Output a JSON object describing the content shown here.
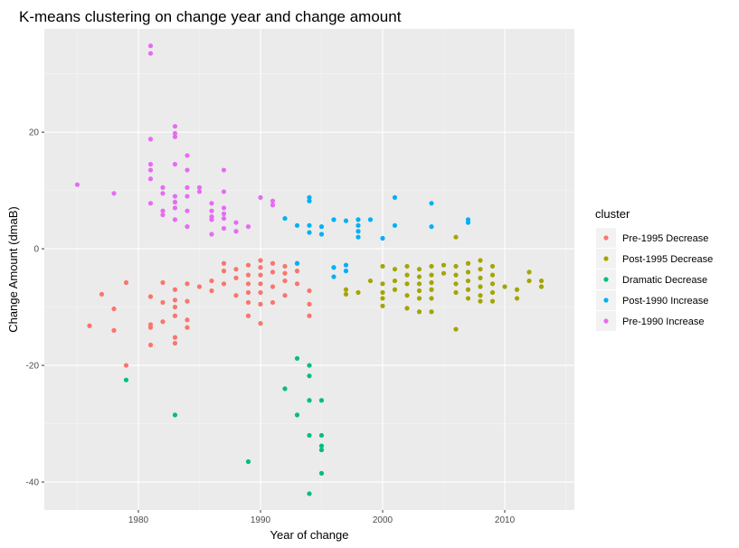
{
  "chart_data": {
    "type": "scatter",
    "title": "K-means clustering on change year and change amount",
    "xlabel": "Year of change",
    "ylabel": "Change Amount (dmaB)",
    "xlim": [
      1972.3,
      2015.7
    ],
    "ylim": [
      -44.8,
      37.7
    ],
    "x_ticks": [
      1980,
      1990,
      2000,
      2010
    ],
    "y_ticks": [
      -40,
      -20,
      0,
      20
    ],
    "grid": true,
    "legend": {
      "title": "cluster",
      "position": "right"
    },
    "series": [
      {
        "name": "Pre-1995 Decrease",
        "color": "#F8766D",
        "points": [
          [
            1976,
            -13.2
          ],
          [
            1977,
            -7.8
          ],
          [
            1978,
            -10.3
          ],
          [
            1978,
            -14.0
          ],
          [
            1979,
            -5.8
          ],
          [
            1979,
            -20.0
          ],
          [
            1981,
            -8.2
          ],
          [
            1981,
            -13.0
          ],
          [
            1981,
            -13.5
          ],
          [
            1981,
            -16.5
          ],
          [
            1982,
            -5.8
          ],
          [
            1982,
            -9.2
          ],
          [
            1982,
            -12.5
          ],
          [
            1983,
            -7.0
          ],
          [
            1983,
            -8.8
          ],
          [
            1983,
            -10.0
          ],
          [
            1983,
            -11.5
          ],
          [
            1983,
            -15.2
          ],
          [
            1983,
            -16.2
          ],
          [
            1984,
            -6.0
          ],
          [
            1984,
            -9.0
          ],
          [
            1984,
            -12.2
          ],
          [
            1984,
            -13.5
          ],
          [
            1985,
            -6.5
          ],
          [
            1986,
            -5.5
          ],
          [
            1986,
            -7.2
          ],
          [
            1987,
            -2.5
          ],
          [
            1987,
            -3.8
          ],
          [
            1987,
            -6.0
          ],
          [
            1988,
            -3.5
          ],
          [
            1988,
            -5.0
          ],
          [
            1988,
            -8.0
          ],
          [
            1989,
            -2.8
          ],
          [
            1989,
            -4.5
          ],
          [
            1989,
            -6.0
          ],
          [
            1989,
            -7.5
          ],
          [
            1989,
            -9.2
          ],
          [
            1989,
            -11.5
          ],
          [
            1990,
            -2.0
          ],
          [
            1990,
            -3.2
          ],
          [
            1990,
            -4.5
          ],
          [
            1990,
            -6.0
          ],
          [
            1990,
            -7.5
          ],
          [
            1990,
            -9.5
          ],
          [
            1990,
            -12.8
          ],
          [
            1991,
            -2.5
          ],
          [
            1991,
            -4.0
          ],
          [
            1991,
            -6.5
          ],
          [
            1991,
            -9.2
          ],
          [
            1992,
            -3.0
          ],
          [
            1992,
            -4.2
          ],
          [
            1992,
            -5.5
          ],
          [
            1992,
            -8.0
          ],
          [
            1993,
            -2.5
          ],
          [
            1993,
            -3.8
          ],
          [
            1993,
            -6.0
          ],
          [
            1994,
            -7.2
          ],
          [
            1994,
            -9.5
          ],
          [
            1994,
            -11.5
          ]
        ]
      },
      {
        "name": "Post-1995 Decrease",
        "color": "#A3A500",
        "points": [
          [
            1997,
            -7.0
          ],
          [
            1997,
            -7.8
          ],
          [
            1998,
            -7.5
          ],
          [
            1999,
            -5.5
          ],
          [
            2000,
            -3.0
          ],
          [
            2000,
            -6.0
          ],
          [
            2000,
            -7.5
          ],
          [
            2000,
            -8.5
          ],
          [
            2000,
            -9.8
          ],
          [
            2001,
            -3.5
          ],
          [
            2001,
            -5.5
          ],
          [
            2001,
            -7.0
          ],
          [
            2002,
            -3.0
          ],
          [
            2002,
            -4.5
          ],
          [
            2002,
            -6.0
          ],
          [
            2002,
            -8.0
          ],
          [
            2002,
            -10.2
          ],
          [
            2003,
            -3.5
          ],
          [
            2003,
            -4.8
          ],
          [
            2003,
            -6.0
          ],
          [
            2003,
            -7.2
          ],
          [
            2003,
            -8.5
          ],
          [
            2003,
            -10.8
          ],
          [
            2004,
            -3.0
          ],
          [
            2004,
            -4.5
          ],
          [
            2004,
            -5.8
          ],
          [
            2004,
            -7.0
          ],
          [
            2004,
            -8.5
          ],
          [
            2004,
            -10.8
          ],
          [
            2005,
            -2.8
          ],
          [
            2005,
            -4.2
          ],
          [
            2006,
            2.0
          ],
          [
            2006,
            -3.0
          ],
          [
            2006,
            -4.5
          ],
          [
            2006,
            -6.0
          ],
          [
            2006,
            -7.5
          ],
          [
            2006,
            -13.8
          ],
          [
            2007,
            -2.5
          ],
          [
            2007,
            -4.0
          ],
          [
            2007,
            -5.5
          ],
          [
            2007,
            -7.0
          ],
          [
            2007,
            -8.5
          ],
          [
            2008,
            -2.0
          ],
          [
            2008,
            -3.5
          ],
          [
            2008,
            -5.0
          ],
          [
            2008,
            -6.5
          ],
          [
            2008,
            -8.0
          ],
          [
            2008,
            -9.0
          ],
          [
            2009,
            -3.0
          ],
          [
            2009,
            -4.5
          ],
          [
            2009,
            -6.0
          ],
          [
            2009,
            -7.5
          ],
          [
            2009,
            -9.0
          ],
          [
            2010,
            -6.5
          ],
          [
            2011,
            -7.0
          ],
          [
            2011,
            -8.5
          ],
          [
            2012,
            -4.0
          ],
          [
            2012,
            -5.5
          ],
          [
            2013,
            -5.5
          ],
          [
            2013,
            -6.5
          ]
        ]
      },
      {
        "name": "Dramatic Decrease",
        "color": "#00BF7D",
        "points": [
          [
            1979,
            -22.5
          ],
          [
            1983,
            -28.5
          ],
          [
            1989,
            -36.5
          ],
          [
            1992,
            -24.0
          ],
          [
            1993,
            -18.8
          ],
          [
            1993,
            -28.5
          ],
          [
            1994,
            -20.0
          ],
          [
            1994,
            -21.8
          ],
          [
            1994,
            -26.0
          ],
          [
            1994,
            -32.0
          ],
          [
            1994,
            -42.0
          ],
          [
            1995,
            -26.0
          ],
          [
            1995,
            -32.0
          ],
          [
            1995,
            -33.8
          ],
          [
            1995,
            -34.5
          ],
          [
            1995,
            -38.5
          ]
        ]
      },
      {
        "name": "Post-1990 Increase",
        "color": "#00B0F6",
        "points": [
          [
            1992,
            5.2
          ],
          [
            1993,
            4.0
          ],
          [
            1993,
            -2.5
          ],
          [
            1994,
            8.8
          ],
          [
            1994,
            8.2
          ],
          [
            1994,
            4.0
          ],
          [
            1994,
            2.8
          ],
          [
            1995,
            3.8
          ],
          [
            1995,
            2.5
          ],
          [
            1996,
            5.0
          ],
          [
            1996,
            -3.2
          ],
          [
            1996,
            -4.8
          ],
          [
            1997,
            4.8
          ],
          [
            1997,
            -2.8
          ],
          [
            1997,
            -3.8
          ],
          [
            1998,
            5.0
          ],
          [
            1998,
            4.0
          ],
          [
            1998,
            3.0
          ],
          [
            1998,
            2.0
          ],
          [
            1999,
            5.0
          ],
          [
            2000,
            1.8
          ],
          [
            2001,
            8.8
          ],
          [
            2001,
            4.0
          ],
          [
            2004,
            7.8
          ],
          [
            2004,
            3.8
          ],
          [
            2007,
            5.0
          ],
          [
            2007,
            4.5
          ]
        ]
      },
      {
        "name": "Pre-1990 Increase",
        "color": "#E76BF3",
        "points": [
          [
            1975,
            11.0
          ],
          [
            1978,
            9.5
          ],
          [
            1981,
            34.8
          ],
          [
            1981,
            33.5
          ],
          [
            1981,
            18.8
          ],
          [
            1981,
            14.5
          ],
          [
            1981,
            13.5
          ],
          [
            1981,
            12.0
          ],
          [
            1981,
            7.8
          ],
          [
            1982,
            10.5
          ],
          [
            1982,
            9.5
          ],
          [
            1982,
            6.5
          ],
          [
            1982,
            5.8
          ],
          [
            1983,
            21.0
          ],
          [
            1983,
            19.8
          ],
          [
            1983,
            19.2
          ],
          [
            1983,
            14.5
          ],
          [
            1983,
            9.0
          ],
          [
            1983,
            8.0
          ],
          [
            1983,
            7.0
          ],
          [
            1983,
            5.0
          ],
          [
            1984,
            16.0
          ],
          [
            1984,
            13.5
          ],
          [
            1984,
            10.5
          ],
          [
            1984,
            9.0
          ],
          [
            1984,
            6.5
          ],
          [
            1984,
            3.8
          ],
          [
            1985,
            10.5
          ],
          [
            1985,
            9.8
          ],
          [
            1986,
            7.8
          ],
          [
            1986,
            6.5
          ],
          [
            1986,
            5.5
          ],
          [
            1986,
            5.0
          ],
          [
            1986,
            2.5
          ],
          [
            1987,
            13.5
          ],
          [
            1987,
            9.8
          ],
          [
            1987,
            7.0
          ],
          [
            1987,
            6.0
          ],
          [
            1987,
            5.2
          ],
          [
            1987,
            3.5
          ],
          [
            1988,
            4.5
          ],
          [
            1988,
            3.0
          ],
          [
            1989,
            3.8
          ],
          [
            1990,
            8.8
          ],
          [
            1991,
            8.2
          ],
          [
            1991,
            7.5
          ]
        ]
      }
    ]
  }
}
